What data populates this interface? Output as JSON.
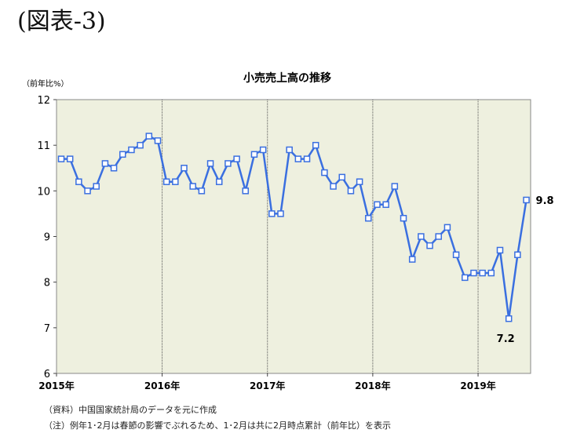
{
  "figure_label": "(図表-3)",
  "notes": {
    "source": "（資料）中国国家統計局のデータを元に作成",
    "caveat": "（注）例年1･2月は春節の影響でぶれるため、1･2月は共に2月時点累計（前年比）を表示"
  },
  "chart_data": {
    "type": "line",
    "title": "小売売上高の推移",
    "ylabel": "（前年比%）",
    "xlabel": "",
    "ylim": [
      6,
      12
    ],
    "yticks": [
      6,
      7,
      8,
      9,
      10,
      11,
      12
    ],
    "xticks": [
      "2015年",
      "2016年",
      "2017年",
      "2018年",
      "2019年"
    ],
    "grid": "vertical year separators",
    "plot_background": "#eef0df",
    "line_color": "#3a6fe0",
    "marker": "hollow-square",
    "series": [
      {
        "values": [
          10.7,
          10.7,
          10.2,
          10.0,
          10.1,
          10.6,
          10.5,
          10.8,
          10.9,
          11.0,
          11.2,
          11.1,
          10.2,
          10.2,
          10.5,
          10.1,
          10.0,
          10.6,
          10.2,
          10.6,
          10.7,
          10.0,
          10.8,
          10.9,
          9.5,
          9.5,
          10.9,
          10.7,
          10.7,
          11.0,
          10.4,
          10.1,
          10.3,
          10.0,
          10.2,
          9.4,
          9.7,
          9.7,
          10.1,
          9.4,
          8.5,
          9.0,
          8.8,
          9.0,
          9.2,
          8.6,
          8.1,
          8.2,
          8.2,
          8.2,
          8.7,
          7.2,
          8.6,
          9.8
        ]
      }
    ],
    "annotations": [
      {
        "label": "9.8",
        "index": 53
      },
      {
        "label": "7.2",
        "index": 51
      }
    ]
  }
}
